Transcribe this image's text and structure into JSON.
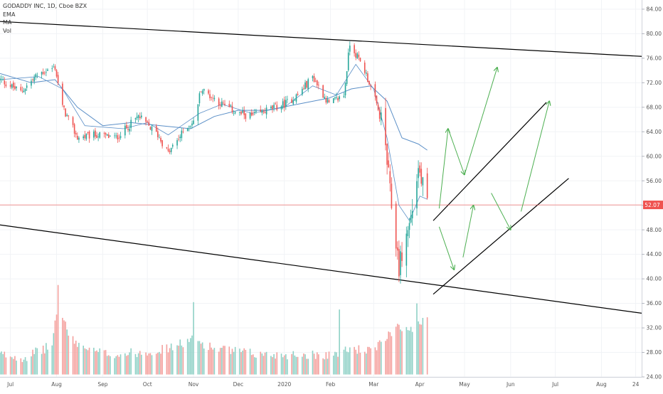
{
  "chart_data": {
    "type": "candlestick",
    "title": "GODADDY INC, 1D, Cboe BZX",
    "legend_items": [
      "EMA",
      "MA",
      "Vol"
    ],
    "price_axis": {
      "ticks": [
        "84.00",
        "80.00",
        "76.00",
        "72.00",
        "68.00",
        "64.00",
        "60.00",
        "56.00",
        "52.00",
        "48.00",
        "44.00",
        "40.00",
        "36.00",
        "32.00",
        "28.00",
        "24.00"
      ],
      "range": [
        24.0,
        85.5
      ]
    },
    "time_axis": {
      "ticks": [
        "Jul",
        "Aug",
        "Sep",
        "Oct",
        "Nov",
        "Dec",
        "2020",
        "Feb",
        "Mar",
        "Apr",
        "May",
        "Jun",
        "Jul",
        "Aug",
        "24"
      ],
      "tick_dates": [
        "2019-07-01",
        "2019-08-01",
        "2019-09-01",
        "2019-10-01",
        "2019-11-01",
        "2019-12-01",
        "2020-01-01",
        "2020-02-01",
        "2020-03-01",
        "2020-04-01",
        "2020-05-01",
        "2020-06-01",
        "2020-07-01",
        "2020-08-01",
        "2020-08-24"
      ],
      "range": [
        "2019-06-24",
        "2020-08-28"
      ]
    },
    "last_price": {
      "value": 52.07,
      "label": "52.07",
      "color": "#ef5350"
    },
    "colors": {
      "up": "#26a69a",
      "down": "#ef5350",
      "vol_up": "#8fd1c6",
      "vol_down": "#f4a09d",
      "ma": "#5b8fc7",
      "arrow": "#4caf50"
    },
    "price_keypoints": [
      [
        "2019-06-24",
        72.5
      ],
      [
        "2019-07-08",
        70.5
      ],
      [
        "2019-07-20",
        73.5
      ],
      [
        "2019-07-31",
        74.5
      ],
      [
        "2019-08-05",
        68.0
      ],
      [
        "2019-08-15",
        63.0
      ],
      [
        "2019-08-28",
        63.5
      ],
      [
        "2019-09-10",
        63.0
      ],
      [
        "2019-09-25",
        66.5
      ],
      [
        "2019-10-08",
        63.5
      ],
      [
        "2019-10-15",
        60.5
      ],
      [
        "2019-10-28",
        65.0
      ],
      [
        "2019-11-01",
        65.5
      ],
      [
        "2019-11-06",
        71.0
      ],
      [
        "2019-11-20",
        68.5
      ],
      [
        "2019-12-01",
        67.0
      ],
      [
        "2019-12-10",
        66.5
      ],
      [
        "2019-12-20",
        67.5
      ],
      [
        "2020-01-01",
        68.5
      ],
      [
        "2020-01-10",
        70.0
      ],
      [
        "2020-01-20",
        73.0
      ],
      [
        "2020-01-31",
        68.5
      ],
      [
        "2020-02-10",
        70.0
      ],
      [
        "2020-02-14",
        78.5
      ],
      [
        "2020-02-24",
        74.0
      ],
      [
        "2020-03-01",
        70.0
      ],
      [
        "2020-03-08",
        64.0
      ],
      [
        "2020-03-12",
        54.0
      ],
      [
        "2020-03-18",
        42.0
      ],
      [
        "2020-03-20",
        44.0
      ],
      [
        "2020-03-26",
        50.0
      ],
      [
        "2020-03-31",
        58.0
      ],
      [
        "2020-04-03",
        55.0
      ],
      [
        "2020-04-06",
        52.0
      ]
    ],
    "ma_line": [
      [
        "2019-06-24",
        73.5
      ],
      [
        "2019-07-15",
        72.0
      ],
      [
        "2019-07-31",
        72.5
      ],
      [
        "2019-08-15",
        68.0
      ],
      [
        "2019-09-01",
        65.0
      ],
      [
        "2019-09-20",
        65.5
      ],
      [
        "2019-10-10",
        65.0
      ],
      [
        "2019-10-30",
        64.5
      ],
      [
        "2019-11-15",
        66.5
      ],
      [
        "2019-12-01",
        67.5
      ],
      [
        "2019-12-20",
        67.5
      ],
      [
        "2020-01-10",
        68.5
      ],
      [
        "2020-01-31",
        69.5
      ],
      [
        "2020-02-15",
        71.0
      ],
      [
        "2020-02-28",
        71.5
      ],
      [
        "2020-03-10",
        69.0
      ],
      [
        "2020-03-20",
        63.0
      ],
      [
        "2020-03-31",
        62.0
      ],
      [
        "2020-04-06",
        61.0
      ]
    ],
    "ema_line": [
      [
        "2019-06-24",
        72.5
      ],
      [
        "2019-07-20",
        73.0
      ],
      [
        "2019-08-05",
        71.0
      ],
      [
        "2019-08-20",
        65.0
      ],
      [
        "2019-09-15",
        64.5
      ],
      [
        "2019-10-01",
        65.5
      ],
      [
        "2019-10-15",
        63.5
      ],
      [
        "2019-11-05",
        67.0
      ],
      [
        "2019-11-20",
        68.5
      ],
      [
        "2019-12-10",
        67.0
      ],
      [
        "2020-01-01",
        68.0
      ],
      [
        "2020-01-20",
        71.5
      ],
      [
        "2020-02-05",
        70.0
      ],
      [
        "2020-02-18",
        75.0
      ],
      [
        "2020-03-01",
        71.0
      ],
      [
        "2020-03-10",
        63.0
      ],
      [
        "2020-03-18",
        52.0
      ],
      [
        "2020-03-25",
        49.5
      ],
      [
        "2020-04-01",
        53.5
      ],
      [
        "2020-04-06",
        53.0
      ]
    ],
    "volume_keypoints": [
      [
        "2019-06-24",
        27.5
      ],
      [
        "2019-07-10",
        27.0
      ],
      [
        "2019-07-29",
        29.0
      ],
      [
        "2019-08-02",
        36.5
      ],
      [
        "2019-08-10",
        30.0
      ],
      [
        "2019-08-25",
        28.0
      ],
      [
        "2019-09-10",
        27.5
      ],
      [
        "2019-10-01",
        28.0
      ],
      [
        "2019-10-15",
        28.5
      ],
      [
        "2019-11-01",
        30.0
      ],
      [
        "2019-11-15",
        28.5
      ],
      [
        "2019-12-15",
        27.5
      ],
      [
        "2020-01-15",
        27.5
      ],
      [
        "2020-02-01",
        27.5
      ],
      [
        "2020-02-15",
        28.5
      ],
      [
        "2020-03-01",
        28.0
      ],
      [
        "2020-03-10",
        30.5
      ],
      [
        "2020-03-18",
        32.5
      ],
      [
        "2020-03-25",
        31.0
      ],
      [
        "2020-03-31",
        33.0
      ],
      [
        "2020-04-06",
        33.5
      ]
    ],
    "volume_spikes": [
      [
        "2019-08-02",
        39.0
      ],
      [
        "2019-11-01",
        36.2
      ],
      [
        "2020-02-07",
        35.0
      ],
      [
        "2020-03-30",
        36.0
      ]
    ],
    "trendlines": [
      {
        "name": "channel-top",
        "from": [
          "2019-06-24",
          82.0
        ],
        "to": [
          "2020-08-28",
          76.3
        ]
      },
      {
        "name": "channel-bottom",
        "from": [
          "2019-06-24",
          48.8
        ],
        "to": [
          "2020-08-28",
          34.4
        ]
      },
      {
        "name": "support-upper",
        "from": [
          "2020-04-10",
          49.5
        ],
        "to": [
          "2020-06-25",
          68.8
        ]
      },
      {
        "name": "support-lower",
        "from": [
          "2020-04-10",
          37.5
        ],
        "to": [
          "2020-07-10",
          56.4
        ]
      }
    ],
    "arrows": [
      [
        [
          "2020-04-14",
          51.5
        ],
        [
          "2020-04-20",
          64.5
        ]
      ],
      [
        [
          "2020-04-20",
          64.5
        ],
        [
          "2020-05-01",
          57.0
        ]
      ],
      [
        [
          "2020-05-01",
          57.0
        ],
        [
          "2020-05-23",
          74.5
        ]
      ],
      [
        [
          "2020-04-14",
          48.5
        ],
        [
          "2020-04-24",
          41.5
        ]
      ],
      [
        [
          "2020-04-30",
          43.5
        ],
        [
          "2020-05-07",
          52.0
        ]
      ],
      [
        [
          "2020-05-19",
          54.0
        ],
        [
          "2020-06-01",
          48.0
        ]
      ],
      [
        [
          "2020-06-08",
          51.0
        ],
        [
          "2020-06-27",
          69.0
        ]
      ]
    ]
  }
}
